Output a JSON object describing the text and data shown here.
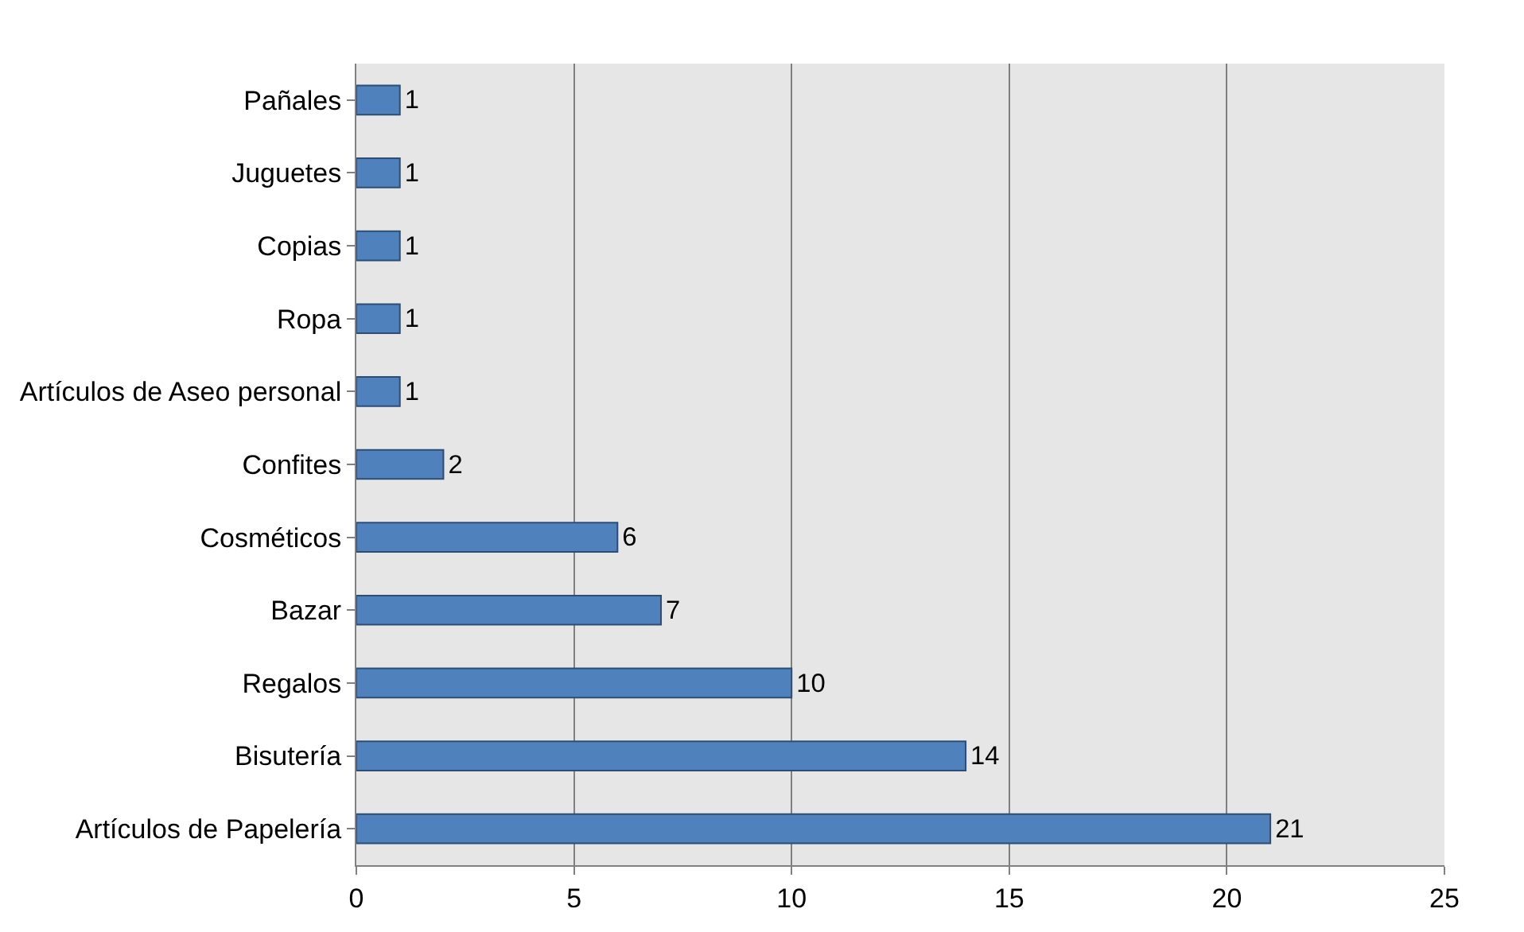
{
  "chart_data": {
    "type": "bar",
    "orientation": "horizontal",
    "categories": [
      "Pañales",
      "Juguetes",
      "Copias",
      "Ropa",
      "Artículos de Aseo personal",
      "Confites",
      "Cosméticos",
      "Bazar",
      "Regalos",
      "Bisutería",
      "Artículos de Papelería"
    ],
    "values": [
      1,
      1,
      1,
      1,
      1,
      2,
      6,
      7,
      10,
      14,
      21
    ],
    "color": "#4f81bd",
    "xlim": [
      0,
      25
    ],
    "xticks": [
      0,
      5,
      10,
      15,
      20,
      25
    ],
    "grid": "x",
    "data_labels": true
  }
}
